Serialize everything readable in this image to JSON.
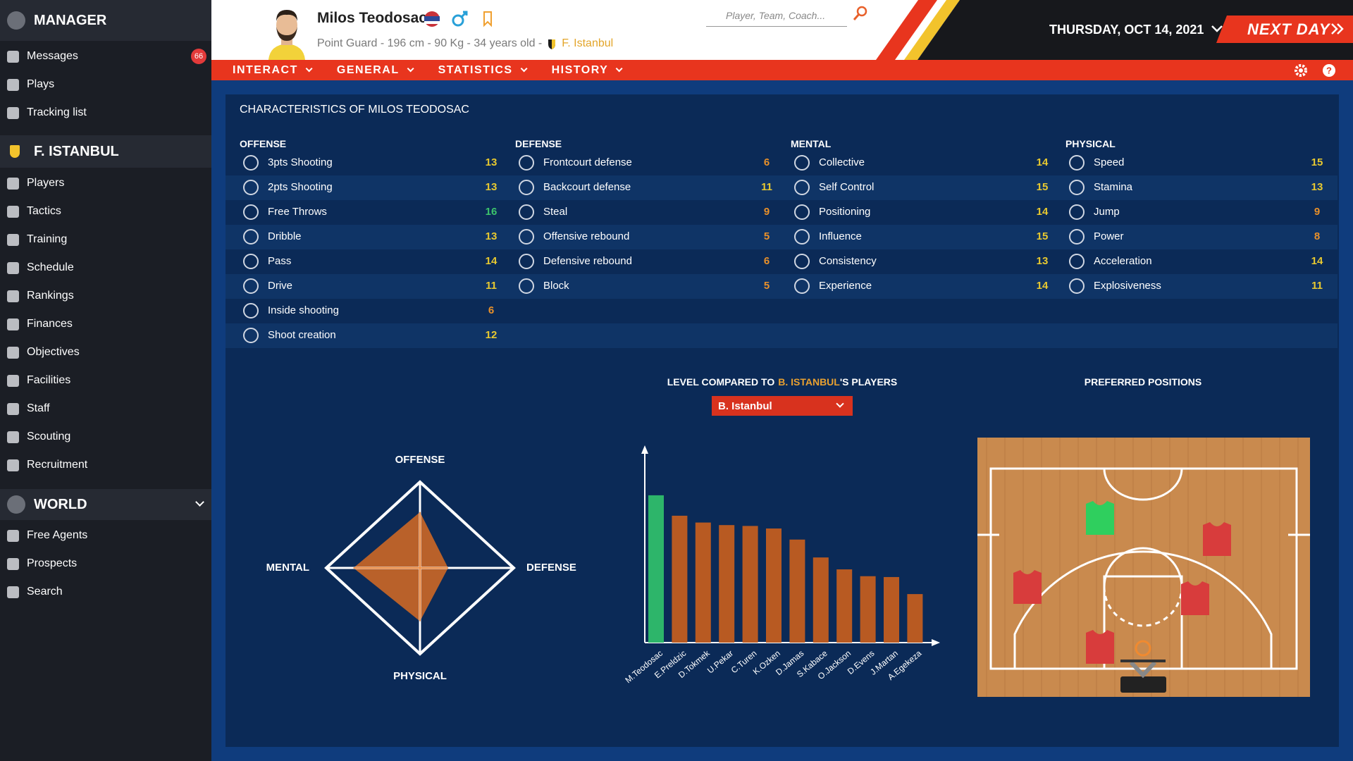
{
  "sidebar": {
    "manager": "MANAGER",
    "manager_items": [
      {
        "label": "Messages",
        "badge": 66
      },
      {
        "label": "Plays"
      },
      {
        "label": "Tracking list"
      }
    ],
    "team": "F. ISTANBUL",
    "team_items": [
      "Players",
      "Tactics",
      "Training",
      "Schedule",
      "Rankings",
      "Finances",
      "Objectives",
      "Facilities",
      "Staff",
      "Scouting",
      "Recruitment"
    ],
    "world": "WORLD",
    "world_items": [
      "Free Agents",
      "Prospects",
      "Search"
    ]
  },
  "header": {
    "name": "Milos Teodosac",
    "details": "Point Guard - 196 cm - 90 Kg - 34 years old -",
    "team": "F. Istanbul",
    "search_placeholder": "Player, Team, Coach...",
    "date": "THURSDAY, OCT 14, 2021",
    "next_day": "NEXT DAY"
  },
  "nav": [
    "INTERACT",
    "GENERAL",
    "STATISTICS",
    "HISTORY"
  ],
  "characteristics": {
    "title": "CHARACTERISTICS OF MILOS TEODOSAC",
    "groups": [
      {
        "name": "OFFENSE",
        "attributes": [
          {
            "name": "3pts Shooting",
            "value": 13
          },
          {
            "name": "2pts Shooting",
            "value": 13
          },
          {
            "name": "Free Throws",
            "value": 16
          },
          {
            "name": "Dribble",
            "value": 13
          },
          {
            "name": "Pass",
            "value": 14
          },
          {
            "name": "Drive",
            "value": 11
          },
          {
            "name": "Inside shooting",
            "value": 6
          },
          {
            "name": "Shoot creation",
            "value": 12
          }
        ]
      },
      {
        "name": "DEFENSE",
        "attributes": [
          {
            "name": "Frontcourt defense",
            "value": 6
          },
          {
            "name": "Backcourt defense",
            "value": 11
          },
          {
            "name": "Steal",
            "value": 9
          },
          {
            "name": "Offensive rebound",
            "value": 5
          },
          {
            "name": "Defensive rebound",
            "value": 6
          },
          {
            "name": "Block",
            "value": 5
          }
        ]
      },
      {
        "name": "MENTAL",
        "attributes": [
          {
            "name": "Collective",
            "value": 14
          },
          {
            "name": "Self Control",
            "value": 15
          },
          {
            "name": "Positioning",
            "value": 14
          },
          {
            "name": "Influence",
            "value": 15
          },
          {
            "name": "Consistency",
            "value": 13
          },
          {
            "name": "Experience",
            "value": 14
          }
        ]
      },
      {
        "name": "PHYSICAL",
        "attributes": [
          {
            "name": "Speed",
            "value": 15
          },
          {
            "name": "Stamina",
            "value": 13
          },
          {
            "name": "Jump",
            "value": 9
          },
          {
            "name": "Power",
            "value": 8
          },
          {
            "name": "Acceleration",
            "value": 14
          },
          {
            "name": "Explosiveness",
            "value": 11
          }
        ]
      }
    ]
  },
  "comparison": {
    "title_parts": [
      "LEVEL COMPARED TO",
      "B. ISTANBUL",
      "'S PLAYERS"
    ],
    "selector": "B. Istanbul"
  },
  "positions": {
    "title": "PREFERRED POSITIONS"
  },
  "chart_data": [
    {
      "type": "radar",
      "categories": [
        "OFFENSE",
        "DEFENSE",
        "PHYSICAL",
        "MENTAL"
      ],
      "values": [
        65,
        30,
        62,
        71
      ],
      "ylim": [
        0,
        100
      ],
      "color": "#b9612a"
    },
    {
      "type": "bar",
      "categories": [
        "M.Teodosac",
        "E.Preldzic",
        "D.Tokmek",
        "U.Pekar",
        "C.Turen",
        "K.Ozken",
        "D.Jamas",
        "S.Kabace",
        "O.Jackson",
        "D.Evens",
        "J.Martan",
        "A.Egekeza"
      ],
      "values": [
        173,
        149,
        141,
        138,
        137,
        134,
        121,
        100,
        86,
        78,
        77,
        57
      ],
      "colors": [
        "#2db56a",
        "#b85a22",
        "#b85a22",
        "#b85a22",
        "#b85a22",
        "#b85a22",
        "#b85a22",
        "#b85a22",
        "#b85a22",
        "#b85a22",
        "#b85a22",
        "#b85a22"
      ],
      "ylim": [
        0,
        230
      ]
    }
  ]
}
